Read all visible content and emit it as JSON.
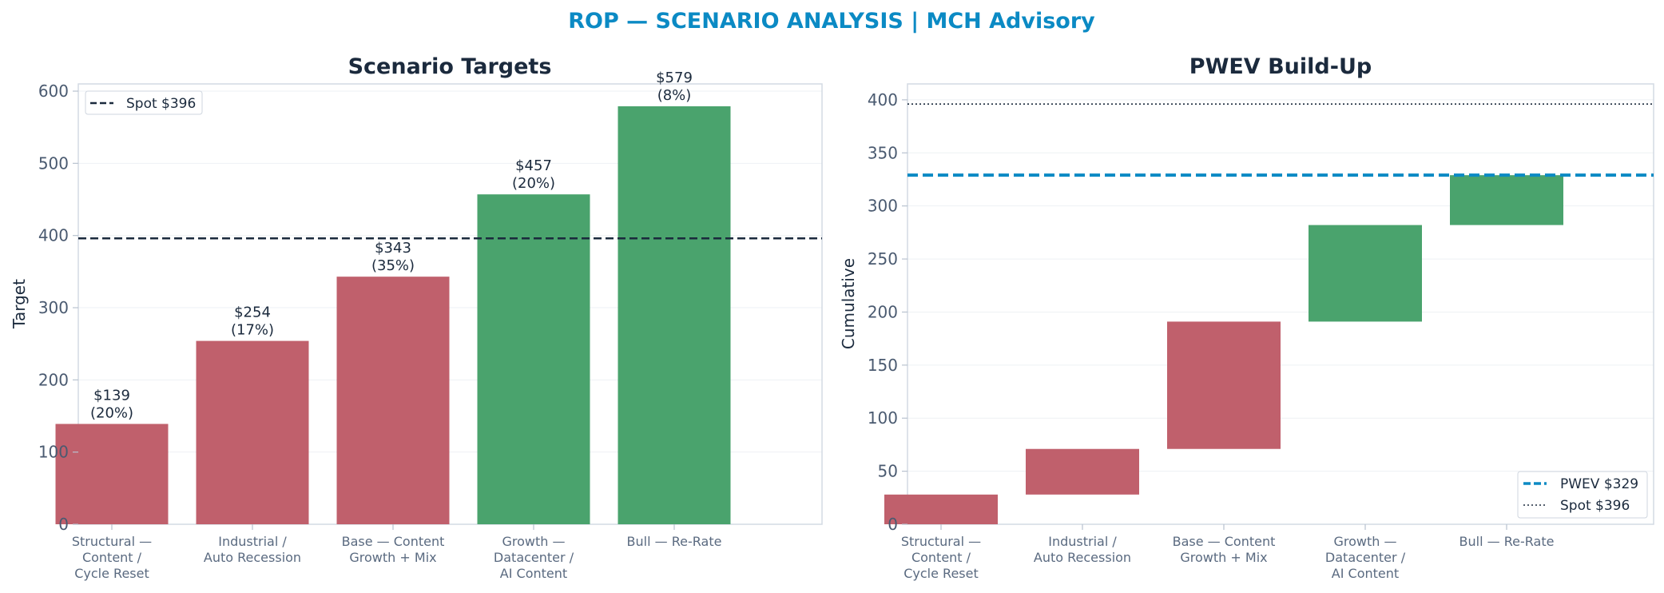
{
  "suptitle": "ROP — SCENARIO ANALYSIS | MCH Advisory",
  "colors": {
    "accent": "#0b8ac4",
    "negative": "#c0606c",
    "positive": "#4aa36d",
    "spot_line": "#1b2a3d",
    "text": "#1b2a3d",
    "tick": "#4a5a70",
    "grid": "#eef1f4",
    "spine": "#d3dae3"
  },
  "chart_data": [
    {
      "type": "bar",
      "title": "Scenario Targets",
      "xlabel": "",
      "ylabel": "Target",
      "ylim": [
        0,
        610
      ],
      "yticks": [
        0,
        100,
        200,
        300,
        400,
        500,
        600
      ],
      "grid": true,
      "categories": [
        [
          "Structural —",
          "Content /",
          "Cycle Reset"
        ],
        [
          "Industrial /",
          "Auto Recession"
        ],
        [
          "Base — Content",
          "Growth + Mix"
        ],
        [
          "Growth —",
          "Datacenter /",
          "AI Content"
        ],
        [
          "Bull — Re-Rate"
        ]
      ],
      "values": [
        139,
        254,
        343,
        457,
        579
      ],
      "probabilities": [
        20,
        17,
        35,
        20,
        8
      ],
      "bar_labels": [
        [
          "$139",
          "(20%)"
        ],
        [
          "$254",
          "(17%)"
        ],
        [
          "$343",
          "(35%)"
        ],
        [
          "$457",
          "(20%)"
        ],
        [
          "$579",
          "(8%)"
        ]
      ],
      "bar_colors": [
        "negative",
        "negative",
        "negative",
        "positive",
        "positive"
      ],
      "reference_lines": [
        {
          "value": 396,
          "label": "Spot $396",
          "style": "dashed"
        }
      ],
      "legend": {
        "placement": "top-left",
        "entries": [
          "Spot $396"
        ]
      }
    },
    {
      "type": "waterfall",
      "title": "PWEV Build-Up",
      "xlabel": "",
      "ylabel": "Cumulative",
      "ylim": [
        0,
        415
      ],
      "yticks": [
        0,
        50,
        100,
        150,
        200,
        250,
        300,
        350,
        400
      ],
      "grid": true,
      "categories": [
        [
          "Structural —",
          "Content /",
          "Cycle Reset"
        ],
        [
          "Industrial /",
          "Auto Recession"
        ],
        [
          "Base — Content",
          "Growth + Mix"
        ],
        [
          "Growth —",
          "Datacenter /",
          "AI Content"
        ],
        [
          "Bull — Re-Rate"
        ]
      ],
      "steps": [
        {
          "start": 0,
          "end": 28,
          "color": "negative"
        },
        {
          "start": 28,
          "end": 71,
          "color": "negative"
        },
        {
          "start": 71,
          "end": 191,
          "color": "negative"
        },
        {
          "start": 191,
          "end": 282,
          "color": "positive"
        },
        {
          "start": 282,
          "end": 329,
          "color": "positive"
        }
      ],
      "reference_lines": [
        {
          "value": 329,
          "label": "PWEV $329",
          "style": "dashed"
        },
        {
          "value": 396,
          "label": "Spot $396",
          "style": "dotted"
        }
      ],
      "legend": {
        "placement": "bottom-right",
        "entries": [
          "PWEV $329",
          "Spot $396"
        ]
      }
    }
  ]
}
